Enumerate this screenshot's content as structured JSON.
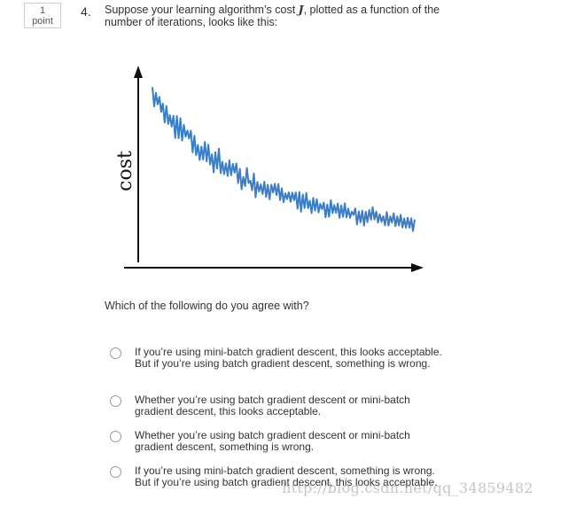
{
  "question": {
    "points_value": "1",
    "points_label": "point",
    "number": "4.",
    "text_before": "Suppose your learning algorithm’s cost ",
    "symbol": "J",
    "text_after": ", plotted as a function of the number of iterations, looks like this:"
  },
  "chart_data": {
    "type": "line",
    "title": "",
    "xlabel": "",
    "ylabel": "cost",
    "series_color": "#3a7ec8",
    "axis_color": "#111111",
    "grid": false,
    "legend": "none",
    "axis_ticks": false,
    "shape": "noisy decreasing curve",
    "noise_amplitude_left": 6,
    "noise_amplitude_right": 3,
    "y": [
      92,
      85,
      80,
      74,
      68,
      62,
      58,
      54,
      50,
      47,
      44,
      41,
      38,
      36,
      34,
      32,
      30,
      28,
      27,
      26,
      24,
      23,
      22,
      21,
      20,
      19,
      18,
      17,
      16,
      15,
      14
    ]
  },
  "prompt": "Which of the following do you agree with?",
  "options": [
    {
      "label": "If you’re using mini-batch gradient descent, this looks acceptable. But if you’re using batch gradient descent, something is wrong."
    },
    {
      "label": "Whether you’re using batch gradient descent or mini-batch gradient descent, this looks acceptable."
    },
    {
      "label": "Whether you’re using batch gradient descent or mini-batch gradient descent, something is wrong."
    },
    {
      "label": "If you’re using mini-batch gradient descent, something is wrong. But if you’re using batch gradient descent, this looks acceptable."
    }
  ],
  "watermark": "http://blog.csdn.net/qq_34859482"
}
